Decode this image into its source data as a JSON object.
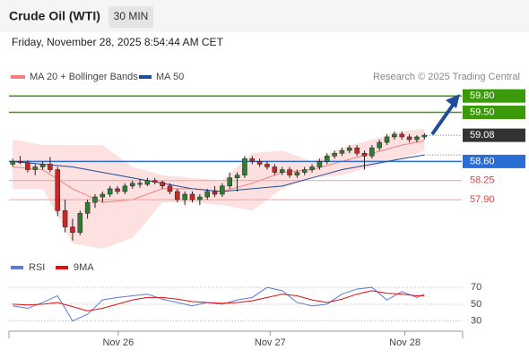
{
  "chart_data": {
    "type": "candlestick",
    "title": "Crude Oil (WTI)",
    "interval": "30 MIN",
    "subtitle": "Friday, November 28, 2025 8:54:44 AM CET",
    "source": "Research © 2025 Trading Central",
    "xlim": [
      -0.5,
      60
    ],
    "xticks": [
      {
        "value": 14.1,
        "label": "Nov 26"
      },
      {
        "value": 34.4,
        "label": "Nov 27"
      },
      {
        "value": 52.4,
        "label": "Nov 28"
      }
    ],
    "ylim": [
      57,
      60
    ],
    "up_color": "#2e7d32",
    "down_color": "#c62828",
    "open": [
      58.55,
      58.6,
      58.58,
      58.45,
      58.5,
      58.55,
      58.45,
      57.7,
      57.4,
      57.3,
      57.65,
      57.85,
      57.95,
      58.0,
      58.1,
      58.05,
      58.15,
      58.2,
      58.18,
      58.25,
      58.22,
      58.15,
      58.05,
      57.9,
      58.0,
      57.9,
      57.95,
      58.05,
      58.0,
      58.15,
      58.3,
      58.35,
      58.65,
      58.6,
      58.55,
      58.5,
      58.4,
      58.45,
      58.35,
      58.4,
      58.45,
      58.5,
      58.6,
      58.7,
      58.75,
      58.8,
      58.85,
      58.75,
      58.7,
      58.85,
      58.95,
      59.05,
      59.1,
      59.05,
      59.0,
      59.05
    ],
    "high": [
      58.65,
      58.7,
      58.62,
      58.55,
      58.6,
      58.68,
      58.5,
      57.9,
      57.55,
      57.7,
      57.9,
      58.0,
      58.05,
      58.15,
      58.15,
      58.2,
      58.25,
      58.28,
      58.3,
      58.3,
      58.25,
      58.2,
      58.1,
      58.05,
      58.05,
      58.0,
      58.1,
      58.15,
      58.2,
      58.4,
      58.4,
      58.7,
      58.7,
      58.65,
      58.6,
      58.55,
      58.5,
      58.5,
      58.45,
      58.5,
      58.55,
      58.65,
      58.75,
      58.8,
      58.85,
      58.9,
      58.9,
      58.8,
      58.9,
      59.0,
      59.1,
      59.15,
      59.15,
      59.1,
      59.08,
      59.12
    ],
    "low": [
      58.5,
      58.55,
      58.4,
      58.35,
      58.45,
      58.4,
      57.6,
      57.3,
      57.15,
      57.25,
      57.55,
      57.75,
      57.85,
      57.95,
      58.0,
      58.0,
      58.1,
      58.12,
      58.15,
      58.18,
      58.1,
      58.0,
      57.85,
      57.8,
      57.85,
      57.8,
      57.9,
      57.95,
      57.95,
      58.1,
      58.05,
      58.3,
      58.55,
      58.5,
      58.45,
      58.35,
      58.35,
      58.3,
      58.3,
      58.35,
      58.4,
      58.45,
      58.55,
      58.65,
      58.7,
      58.75,
      58.7,
      58.45,
      58.65,
      58.8,
      58.9,
      59.0,
      59.0,
      58.95,
      58.95,
      59.0
    ],
    "close": [
      58.6,
      58.58,
      58.45,
      58.5,
      58.55,
      58.45,
      57.7,
      57.4,
      57.3,
      57.65,
      57.85,
      57.95,
      58.0,
      58.1,
      58.05,
      58.15,
      58.2,
      58.18,
      58.25,
      58.22,
      58.15,
      58.05,
      57.9,
      58.0,
      57.9,
      57.95,
      58.05,
      58.0,
      58.15,
      58.3,
      58.35,
      58.65,
      58.6,
      58.55,
      58.5,
      58.4,
      58.45,
      58.35,
      58.4,
      58.45,
      58.5,
      58.6,
      58.7,
      58.75,
      58.8,
      58.85,
      58.75,
      58.7,
      58.85,
      58.95,
      59.05,
      59.1,
      59.05,
      59.0,
      59.05,
      59.08
    ],
    "bands": {
      "name": "MA 20 + Bollinger Bands",
      "color": "#f08080",
      "fill": "#fde0e0",
      "x": [
        0,
        4,
        8,
        12,
        16,
        20,
        24,
        28,
        32,
        36,
        40,
        44,
        48,
        52,
        55
      ],
      "upper": [
        59.0,
        58.9,
        58.9,
        58.9,
        58.5,
        58.35,
        58.3,
        58.25,
        58.75,
        58.8,
        58.6,
        58.85,
        59.0,
        59.15,
        59.2
      ],
      "values": [
        58.5,
        58.45,
        58.1,
        57.85,
        57.9,
        58.1,
        58.1,
        58.05,
        58.2,
        58.4,
        58.45,
        58.6,
        58.75,
        58.9,
        58.98
      ],
      "lower": [
        58.1,
        58.1,
        57.1,
        57.0,
        57.2,
        57.85,
        57.85,
        57.8,
        57.7,
        58.1,
        58.3,
        58.35,
        58.5,
        58.65,
        58.8
      ]
    },
    "series": [
      {
        "name": "MA 50",
        "color": "#1f4e99",
        "x": [
          0,
          4,
          8,
          12,
          16,
          20,
          24,
          28,
          32,
          36,
          40,
          44,
          48,
          52,
          55
        ],
        "values": [
          58.6,
          58.55,
          58.5,
          58.4,
          58.3,
          58.2,
          58.1,
          58.05,
          58.1,
          58.15,
          58.3,
          58.45,
          58.55,
          58.65,
          58.72
        ]
      }
    ],
    "levels": [
      {
        "value": 59.8,
        "label": "59.80",
        "color": "#3a9a0a",
        "filled": true
      },
      {
        "value": 59.5,
        "label": "59.50",
        "color": "#3a9a0a",
        "filled": true
      },
      {
        "value": 59.08,
        "label": "59.08",
        "color": "#333333",
        "filled": true,
        "dotted": true
      },
      {
        "value": 58.6,
        "label": "58.60",
        "color": "#2a6dd4",
        "filled": true
      },
      {
        "value": 58.25,
        "label": "58.25",
        "color": "#e04040",
        "filled": false
      },
      {
        "value": 57.9,
        "label": "57.90",
        "color": "#e04040",
        "filled": false
      }
    ],
    "rsi": {
      "ylim": [
        20,
        85
      ],
      "yticks": [
        70,
        50,
        30
      ],
      "series": [
        {
          "name": "RSI",
          "color": "#5b7bd5",
          "x": [
            0,
            2,
            4,
            6,
            8,
            10,
            12,
            14,
            16,
            18,
            20,
            22,
            24,
            26,
            28,
            30,
            32,
            34,
            36,
            38,
            40,
            42,
            44,
            46,
            48,
            50,
            52,
            54,
            55
          ],
          "values": [
            48,
            45,
            52,
            60,
            30,
            38,
            55,
            58,
            60,
            62,
            56,
            52,
            48,
            52,
            50,
            55,
            58,
            70,
            66,
            52,
            48,
            50,
            62,
            68,
            70,
            55,
            65,
            58,
            62
          ]
        },
        {
          "name": "9MA",
          "color": "#e01010",
          "x": [
            0,
            2,
            4,
            6,
            8,
            10,
            12,
            14,
            16,
            18,
            20,
            22,
            24,
            26,
            28,
            30,
            32,
            34,
            36,
            38,
            40,
            42,
            44,
            46,
            48,
            50,
            52,
            54,
            55
          ],
          "values": [
            50,
            49,
            50,
            52,
            47,
            42,
            45,
            50,
            55,
            58,
            58,
            56,
            53,
            52,
            51,
            52,
            54,
            58,
            62,
            60,
            55,
            52,
            56,
            62,
            66,
            63,
            62,
            60,
            60
          ]
        }
      ]
    }
  }
}
